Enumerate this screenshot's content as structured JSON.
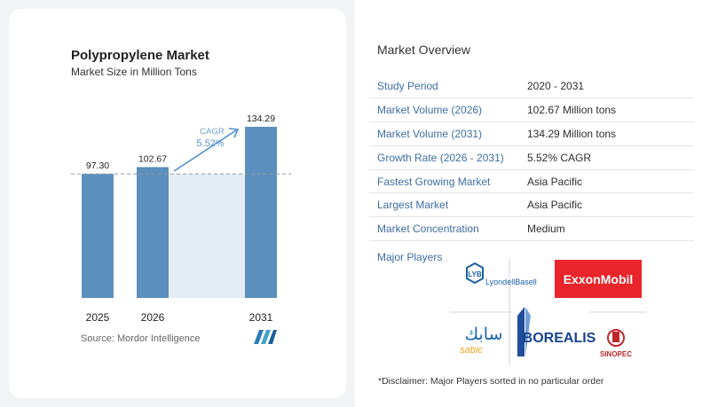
{
  "card": {
    "title": "Polypropylene Market",
    "subtitle": "Market Size in Million Tons",
    "source": "Source:  Mordor Intelligence"
  },
  "chart_data": {
    "type": "bar",
    "categories": [
      "2025",
      "2026",
      "2031"
    ],
    "values": [
      97.3,
      102.67,
      134.29
    ],
    "value_labels": [
      "97.30",
      "102.67",
      "134.29"
    ],
    "title": "Polypropylene Market",
    "subtitle": "Market Size in Million Tons",
    "xlabel": "",
    "ylabel": "",
    "ylim": [
      0,
      134.29
    ],
    "grid": false,
    "cagr_label": "CAGR",
    "cagr_value": "5.52%",
    "reference_line_value": 97.3,
    "colors": {
      "bar": "#5b8fbd",
      "bar_top": "#5089bb",
      "shade": "#e3ecf4",
      "arrow": "#4f8fcf",
      "cagr": "#5a93c9"
    }
  },
  "overview": {
    "title": "Market Overview",
    "rows": [
      {
        "label": "Study Period",
        "value": "2020 - 2031"
      },
      {
        "label": "Market Volume (2026)",
        "value": "102.67 Million tons"
      },
      {
        "label": "Market Volume (2031)",
        "value": "134.29 Million tons"
      },
      {
        "label": "Growth Rate (2026 - 2031)",
        "value": "5.52% CAGR"
      },
      {
        "label": "Fastest Growing Market",
        "value": "Asia Pacific"
      },
      {
        "label": "Largest Market",
        "value": "Asia Pacific"
      },
      {
        "label": "Market Concentration",
        "value": "Medium"
      }
    ],
    "players_label": "Major Players",
    "disclaimer": "*Disclaimer: Major Players sorted in no particular order"
  },
  "players": {
    "lyb_mark": "LYB",
    "lyondellbasell": "LyondellBasell",
    "exxonmobil": "ExxonMobil",
    "sabic_arabic": "سابك",
    "sabic": "sabic",
    "borealis": "BOREALIS",
    "sinopec": "SINOPEC"
  }
}
